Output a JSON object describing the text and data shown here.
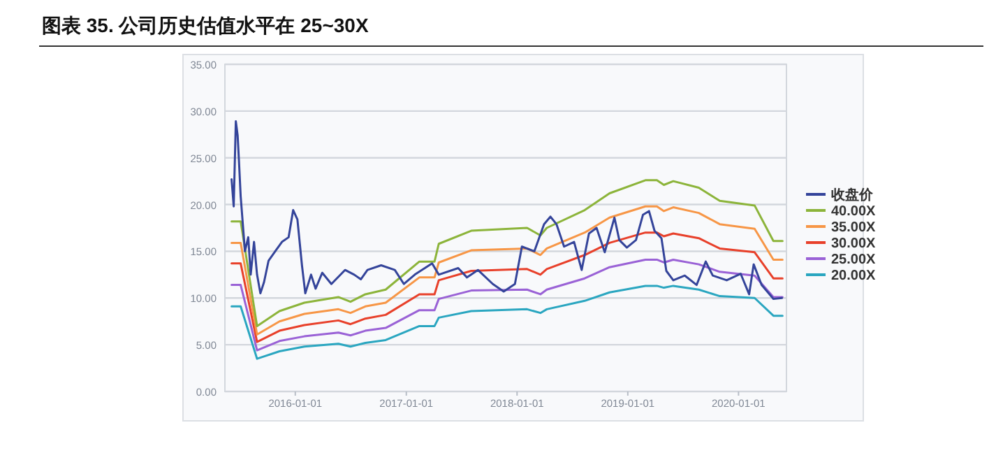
{
  "chart_data": {
    "type": "line",
    "title": "图表 35. 公司历史估值水平在 25~30X",
    "xlim": [
      "2015-05-14",
      "2020-06-07"
    ],
    "ylim": [
      0,
      35
    ],
    "xticks": [
      "2016-01-01",
      "2017-01-01",
      "2018-01-01",
      "2019-01-01",
      "2020-01-01"
    ],
    "yticks": [
      {
        "value": 0,
        "label": "0.00"
      },
      {
        "value": 5,
        "label": "5.00"
      },
      {
        "value": 10,
        "label": "10.00"
      },
      {
        "value": 15,
        "label": "15.00"
      },
      {
        "value": 20,
        "label": "20.00"
      },
      {
        "value": 25,
        "label": "25.00"
      },
      {
        "value": 30,
        "label": "30.00"
      },
      {
        "value": 35,
        "label": "35.00"
      }
    ],
    "grid": "y",
    "legend": "right",
    "series": [
      {
        "name": "收盘价",
        "color": "#34449a",
        "x": [
          "2015-06-05",
          "2015-06-12",
          "2015-06-19",
          "2015-06-25",
          "2015-06-29",
          "2015-07-05",
          "2015-07-19",
          "2015-07-30",
          "2015-08-07",
          "2015-08-18",
          "2015-08-28",
          "2015-09-08",
          "2015-09-20",
          "2015-10-05",
          "2015-10-27",
          "2015-11-18",
          "2015-12-10",
          "2015-12-25",
          "2016-01-08",
          "2016-01-23",
          "2016-02-03",
          "2016-02-22",
          "2016-03-08",
          "2016-03-30",
          "2016-04-29",
          "2016-06-13",
          "2016-07-13",
          "2016-08-04",
          "2016-08-26",
          "2016-10-10",
          "2016-11-24",
          "2016-12-24",
          "2017-01-29",
          "2017-03-27",
          "2017-04-18",
          "2017-06-21",
          "2017-07-20",
          "2017-08-25",
          "2017-10-13",
          "2017-11-18",
          "2017-12-25",
          "2018-01-17",
          "2018-02-27",
          "2018-03-31",
          "2018-04-21",
          "2018-05-11",
          "2018-06-05",
          "2018-07-08",
          "2018-08-02",
          "2018-08-26",
          "2018-09-20",
          "2018-10-17",
          "2018-11-18",
          "2018-12-04",
          "2018-12-29",
          "2019-01-28",
          "2019-02-20",
          "2019-03-12",
          "2019-03-30",
          "2019-04-22",
          "2019-05-08",
          "2019-05-31",
          "2019-07-08",
          "2019-08-16",
          "2019-09-15",
          "2019-10-08",
          "2019-11-23",
          "2020-01-08",
          "2020-02-05",
          "2020-02-20",
          "2020-03-17",
          "2020-04-25",
          "2020-05-23"
        ],
        "values": [
          22.7,
          19.8,
          28.9,
          27.4,
          24.9,
          20.9,
          15.0,
          16.5,
          12.5,
          16.0,
          12.5,
          10.5,
          11.7,
          14.0,
          15.0,
          16.0,
          16.5,
          19.4,
          18.4,
          13.5,
          10.5,
          12.5,
          11.0,
          12.7,
          11.5,
          13.0,
          12.5,
          12.0,
          13.0,
          13.5,
          13.0,
          11.5,
          12.5,
          13.7,
          12.5,
          13.2,
          12.2,
          13.0,
          11.5,
          10.7,
          11.5,
          15.5,
          15.0,
          17.9,
          18.7,
          17.9,
          15.5,
          16.0,
          13.0,
          16.9,
          17.5,
          14.9,
          18.6,
          16.2,
          15.4,
          16.2,
          18.9,
          19.3,
          17.2,
          16.4,
          12.9,
          11.9,
          12.4,
          11.4,
          13.9,
          12.4,
          11.9,
          12.6,
          10.4,
          13.6,
          11.4,
          9.9,
          10.0
        ]
      },
      {
        "name": "40.00X",
        "color": "#8cb43a",
        "x": [
          "2015-06-05",
          "2015-07-05",
          "2015-08-28",
          "2015-11-10",
          "2016-01-31",
          "2016-05-22",
          "2016-07-01",
          "2016-08-19",
          "2016-10-25",
          "2017-02-13",
          "2017-04-04",
          "2017-04-18",
          "2017-08-03",
          "2018-02-03",
          "2018-03-19",
          "2018-04-09",
          "2018-08-12",
          "2018-11-02",
          "2019-02-28",
          "2019-04-07",
          "2019-04-30",
          "2019-05-31",
          "2019-08-23",
          "2019-10-31",
          "2020-02-23",
          "2020-04-25",
          "2020-05-25"
        ],
        "values": [
          18.2,
          18.2,
          7.0,
          8.6,
          9.5,
          10.1,
          9.6,
          10.4,
          10.9,
          13.9,
          13.9,
          15.8,
          17.2,
          17.5,
          16.7,
          17.5,
          19.4,
          21.2,
          22.6,
          22.6,
          22.1,
          22.5,
          21.8,
          20.4,
          19.9,
          16.1,
          16.1
        ]
      },
      {
        "name": "35.00X",
        "color": "#f79646",
        "x": [
          "2015-06-05",
          "2015-07-05",
          "2015-08-28",
          "2015-11-10",
          "2016-01-31",
          "2016-05-22",
          "2016-07-01",
          "2016-08-19",
          "2016-10-25",
          "2017-02-13",
          "2017-04-04",
          "2017-04-18",
          "2017-08-03",
          "2018-02-03",
          "2018-03-19",
          "2018-04-09",
          "2018-08-12",
          "2018-11-02",
          "2019-02-28",
          "2019-04-07",
          "2019-04-30",
          "2019-05-31",
          "2019-08-23",
          "2019-10-31",
          "2020-02-23",
          "2020-04-25",
          "2020-05-25"
        ],
        "values": [
          15.9,
          15.9,
          6.1,
          7.5,
          8.3,
          8.8,
          8.4,
          9.1,
          9.5,
          12.2,
          12.2,
          13.8,
          15.1,
          15.3,
          14.6,
          15.3,
          17.0,
          18.6,
          19.8,
          19.8,
          19.3,
          19.7,
          19.1,
          17.9,
          17.4,
          14.1,
          14.1
        ]
      },
      {
        "name": "30.00X",
        "color": "#e8402a",
        "x": [
          "2015-06-05",
          "2015-07-05",
          "2015-08-28",
          "2015-11-10",
          "2016-01-31",
          "2016-05-22",
          "2016-07-01",
          "2016-08-19",
          "2016-10-25",
          "2017-02-13",
          "2017-04-04",
          "2017-04-18",
          "2017-08-03",
          "2018-02-03",
          "2018-03-19",
          "2018-04-09",
          "2018-08-12",
          "2018-11-02",
          "2019-02-28",
          "2019-04-07",
          "2019-04-30",
          "2019-05-31",
          "2019-08-23",
          "2019-10-31",
          "2020-02-23",
          "2020-04-25",
          "2020-05-25"
        ],
        "values": [
          13.7,
          13.7,
          5.3,
          6.5,
          7.1,
          7.6,
          7.2,
          7.8,
          8.2,
          10.4,
          10.4,
          11.9,
          12.9,
          13.1,
          12.5,
          13.1,
          14.6,
          15.9,
          17.0,
          17.0,
          16.6,
          16.9,
          16.4,
          15.3,
          14.9,
          12.1,
          12.1
        ]
      },
      {
        "name": "25.00X",
        "color": "#9a62d6",
        "x": [
          "2015-06-05",
          "2015-07-05",
          "2015-08-28",
          "2015-11-10",
          "2016-01-31",
          "2016-05-22",
          "2016-07-01",
          "2016-08-19",
          "2016-10-25",
          "2017-02-13",
          "2017-04-04",
          "2017-04-18",
          "2017-08-03",
          "2018-02-03",
          "2018-03-19",
          "2018-04-09",
          "2018-08-12",
          "2018-11-02",
          "2019-02-28",
          "2019-04-07",
          "2019-04-30",
          "2019-05-31",
          "2019-08-23",
          "2019-10-31",
          "2020-02-23",
          "2020-04-25",
          "2020-05-25"
        ],
        "values": [
          11.4,
          11.4,
          4.4,
          5.4,
          5.9,
          6.3,
          6.0,
          6.5,
          6.8,
          8.7,
          8.7,
          9.9,
          10.8,
          10.9,
          10.4,
          10.9,
          12.1,
          13.3,
          14.1,
          14.1,
          13.8,
          14.1,
          13.6,
          12.8,
          12.4,
          10.1,
          10.1
        ]
      },
      {
        "name": "20.00X",
        "color": "#2aa6c0",
        "x": [
          "2015-06-05",
          "2015-07-05",
          "2015-08-28",
          "2015-11-10",
          "2016-01-31",
          "2016-05-22",
          "2016-07-01",
          "2016-08-19",
          "2016-10-25",
          "2017-02-13",
          "2017-04-04",
          "2017-04-18",
          "2017-08-03",
          "2018-02-03",
          "2018-03-19",
          "2018-04-09",
          "2018-08-12",
          "2018-11-02",
          "2019-02-28",
          "2019-04-07",
          "2019-04-30",
          "2019-05-31",
          "2019-08-23",
          "2019-10-31",
          "2020-02-23",
          "2020-04-25",
          "2020-05-25"
        ],
        "values": [
          9.1,
          9.1,
          3.5,
          4.3,
          4.8,
          5.1,
          4.8,
          5.2,
          5.5,
          7.0,
          7.0,
          7.9,
          8.6,
          8.8,
          8.4,
          8.8,
          9.7,
          10.6,
          11.3,
          11.3,
          11.1,
          11.3,
          10.9,
          10.2,
          10.0,
          8.1,
          8.1
        ]
      }
    ]
  }
}
